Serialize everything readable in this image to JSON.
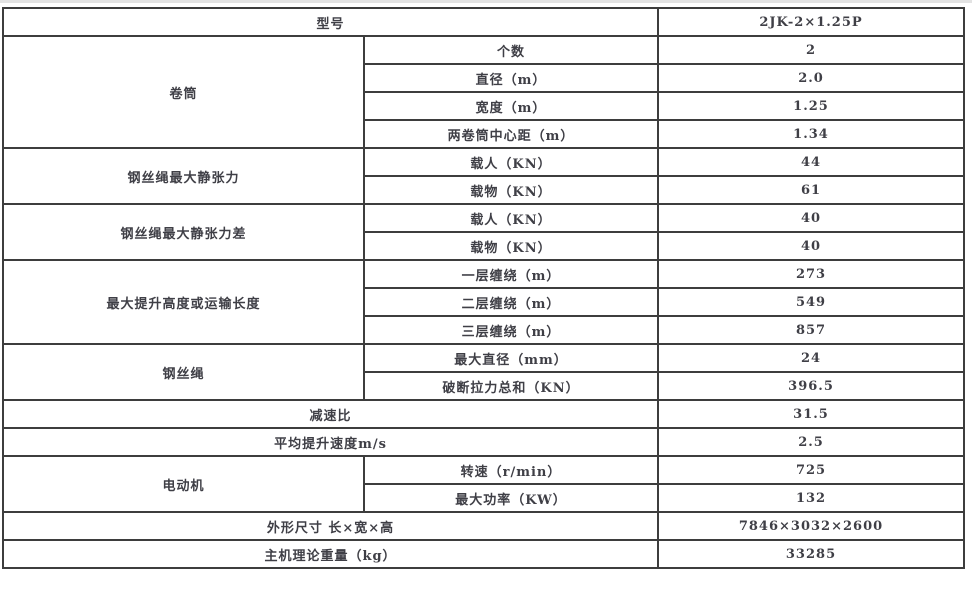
{
  "colors": {
    "border": "#3d3d3d",
    "text": "#3f3f46",
    "top_strip": "#e3e3e3",
    "background": "#ffffff"
  },
  "table": {
    "header": {
      "label": "型号",
      "value": "2JK-2×1.25P"
    },
    "sections": [
      {
        "group": "卷筒",
        "rows": [
          {
            "label": "个数",
            "value": "2"
          },
          {
            "label": "直径（m）",
            "value": "2.0"
          },
          {
            "label": "宽度（m）",
            "value": "1.25"
          },
          {
            "label": "两卷筒中心距（m）",
            "value": "1.34"
          }
        ]
      },
      {
        "group": "钢丝绳最大静张力",
        "rows": [
          {
            "label": "载人（KN）",
            "value": "44"
          },
          {
            "label": "载物（KN）",
            "value": "61"
          }
        ]
      },
      {
        "group": "钢丝绳最大静张力差",
        "rows": [
          {
            "label": "载人（KN）",
            "value": "40"
          },
          {
            "label": "载物（KN）",
            "value": "40"
          }
        ]
      },
      {
        "group": "最大提升高度或运输长度",
        "rows": [
          {
            "label": "一层缠绕（m）",
            "value": "273"
          },
          {
            "label": "二层缠绕（m）",
            "value": "549"
          },
          {
            "label": "三层缠绕（m）",
            "value": "857"
          }
        ]
      },
      {
        "group": "钢丝绳",
        "rows": [
          {
            "label": "最大直径（mm）",
            "value": "24"
          },
          {
            "label": "破断拉力总和（KN）",
            "value": "396.5"
          }
        ]
      },
      {
        "label": "减速比",
        "value": "31.5"
      },
      {
        "label": "平均提升速度m/s",
        "value": "2.5"
      },
      {
        "group": "电动机",
        "rows": [
          {
            "label": "转速（r/min）",
            "value": "725"
          },
          {
            "label": "最大功率（KW）",
            "value": "132"
          }
        ]
      },
      {
        "label": "外形尺寸 长×宽×高",
        "value": "7846×3032×2600"
      },
      {
        "label": "主机理论重量（kg）",
        "value": "33285"
      }
    ]
  }
}
